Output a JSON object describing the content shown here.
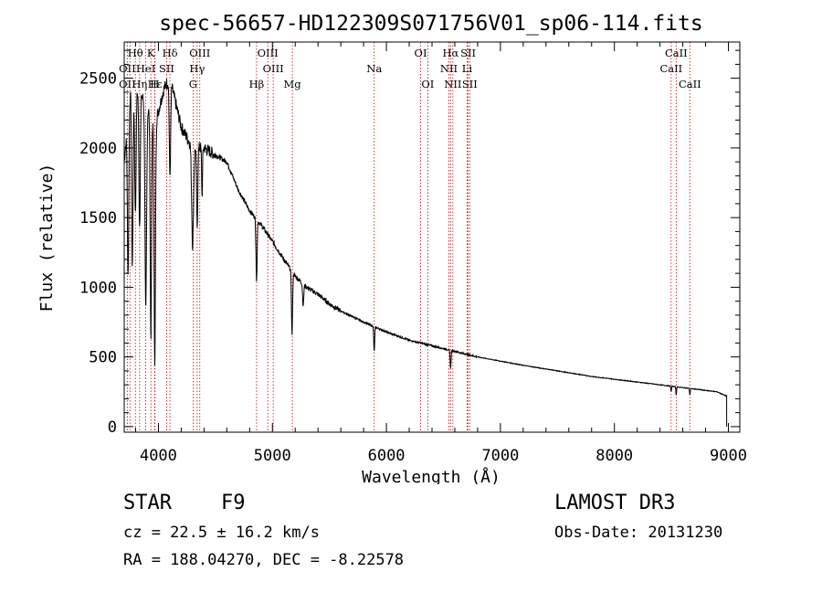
{
  "chart_data": {
    "type": "line",
    "title": "spec-56657-HD122309S071756V01_sp06-114.fits",
    "xlabel": "Wavelength (Å)",
    "ylabel": "Flux (relative)",
    "xlim": [
      3700,
      9100
    ],
    "ylim": [
      -40,
      2760
    ],
    "x_ticks": [
      4000,
      5000,
      6000,
      7000,
      8000,
      9000
    ],
    "x_tick_labels": [
      "4000",
      "5000",
      "6000",
      "7000",
      "8000",
      "9000"
    ],
    "y_ticks": [
      0,
      500,
      1000,
      1500,
      2000,
      2500
    ],
    "y_tick_labels": [
      "0",
      "500",
      "1000",
      "1500",
      "2000",
      "2500"
    ],
    "series": [
      {
        "name": "spectrum",
        "continuum": [
          [
            3700,
            1900
          ],
          [
            3760,
            2450
          ],
          [
            3850,
            2380
          ],
          [
            3930,
            2250
          ],
          [
            3980,
            2200
          ],
          [
            4050,
            2430
          ],
          [
            4100,
            2500
          ],
          [
            4200,
            2150
          ],
          [
            4300,
            2000
          ],
          [
            4400,
            2000
          ],
          [
            4500,
            1950
          ],
          [
            4600,
            1900
          ],
          [
            4700,
            1700
          ],
          [
            4800,
            1550
          ],
          [
            4900,
            1450
          ],
          [
            5000,
            1330
          ],
          [
            5100,
            1200
          ],
          [
            5200,
            1080
          ],
          [
            5300,
            1000
          ],
          [
            5400,
            950
          ],
          [
            5500,
            880
          ],
          [
            5600,
            830
          ],
          [
            5700,
            790
          ],
          [
            5800,
            750
          ],
          [
            5900,
            715
          ],
          [
            6000,
            680
          ],
          [
            6200,
            620
          ],
          [
            6400,
            580
          ],
          [
            6600,
            540
          ],
          [
            6800,
            500
          ],
          [
            7000,
            470
          ],
          [
            7200,
            440
          ],
          [
            7500,
            400
          ],
          [
            7800,
            360
          ],
          [
            8000,
            340
          ],
          [
            8300,
            310
          ],
          [
            8500,
            290
          ],
          [
            8700,
            270
          ],
          [
            8900,
            250
          ],
          [
            8980,
            220
          ]
        ],
        "absorptions": [
          [
            3734,
            1100,
            6
          ],
          [
            3771,
            1300,
            6
          ],
          [
            3798,
            900,
            6
          ],
          [
            3835,
            950,
            6
          ],
          [
            3889,
            1500,
            7
          ],
          [
            3934,
            1600,
            6
          ],
          [
            3968,
            1800,
            6
          ],
          [
            4101,
            700,
            6
          ],
          [
            4300,
            700,
            8
          ],
          [
            4340,
            600,
            5
          ],
          [
            4383,
            350,
            4
          ],
          [
            4861,
            450,
            5
          ],
          [
            5172,
            450,
            5
          ],
          [
            5270,
            150,
            5
          ],
          [
            5893,
            180,
            4
          ],
          [
            6563,
            130,
            4
          ],
          [
            8498,
            40,
            3
          ],
          [
            8542,
            60,
            3
          ],
          [
            8662,
            50,
            3
          ]
        ]
      }
    ],
    "annotations": [
      {
        "label": "Hθ",
        "x": 3798,
        "row": 0
      },
      {
        "label": "OII",
        "x": 3727,
        "row": 1
      },
      {
        "label": "OII",
        "x": 3727,
        "row": 2
      },
      {
        "label": "Hη",
        "x": 3835,
        "row": 2
      },
      {
        "label": "HeI",
        "x": 3889,
        "row": 1
      },
      {
        "label": "K",
        "x": 3934,
        "row": 0
      },
      {
        "label": "H",
        "x": 3968,
        "row": 2
      },
      {
        "label": "Hε",
        "x": 3970,
        "row": 2
      },
      {
        "label": "Hδ",
        "x": 4101,
        "row": 0
      },
      {
        "label": "SII",
        "x": 4072,
        "row": 1
      },
      {
        "label": "OIII",
        "x": 4363,
        "row": 0
      },
      {
        "label": "Hγ",
        "x": 4340,
        "row": 1
      },
      {
        "label": "G",
        "x": 4304,
        "row": 2
      },
      {
        "label": "Hβ",
        "x": 4861,
        "row": 2
      },
      {
        "label": "OIII",
        "x": 4959,
        "row": 0
      },
      {
        "label": "OIII",
        "x": 5007,
        "row": 1
      },
      {
        "label": "Mg",
        "x": 5175,
        "row": 2
      },
      {
        "label": "Na",
        "x": 5893,
        "row": 1
      },
      {
        "label": "OI",
        "x": 6300,
        "row": 0
      },
      {
        "label": "OI",
        "x": 6363,
        "row": 2
      },
      {
        "label": "Hα",
        "x": 6563,
        "row": 0
      },
      {
        "label": "NII",
        "x": 6548,
        "row": 1
      },
      {
        "label": "NII",
        "x": 6583,
        "row": 2
      },
      {
        "label": "SII",
        "x": 6717,
        "row": 0
      },
      {
        "label": "Li",
        "x": 6708,
        "row": 1
      },
      {
        "label": "SII",
        "x": 6731,
        "row": 2
      },
      {
        "label": "CaII",
        "x": 8542,
        "row": 0
      },
      {
        "label": "CaII",
        "x": 8498,
        "row": 1
      },
      {
        "label": "CaII",
        "x": 8662,
        "row": 2
      }
    ],
    "annotation_lines_x": [
      3727,
      3750,
      3798,
      3835,
      3889,
      3934,
      3968,
      3970,
      4072,
      4101,
      4304,
      4340,
      4363,
      4861,
      4959,
      5007,
      5175,
      5893,
      6300,
      6363,
      6548,
      6563,
      6583,
      6708,
      6717,
      6731,
      8498,
      8542,
      8662
    ],
    "line_color": "#cc0000"
  },
  "info": {
    "object_type": "STAR",
    "subclass": "F9",
    "survey": "LAMOST DR3",
    "redshift": "cz = 22.5 ± 16.2 km/s",
    "obs_date": "Obs-Date: 20131230",
    "coords": "RA = 188.04270, DEC =  -8.22578"
  }
}
